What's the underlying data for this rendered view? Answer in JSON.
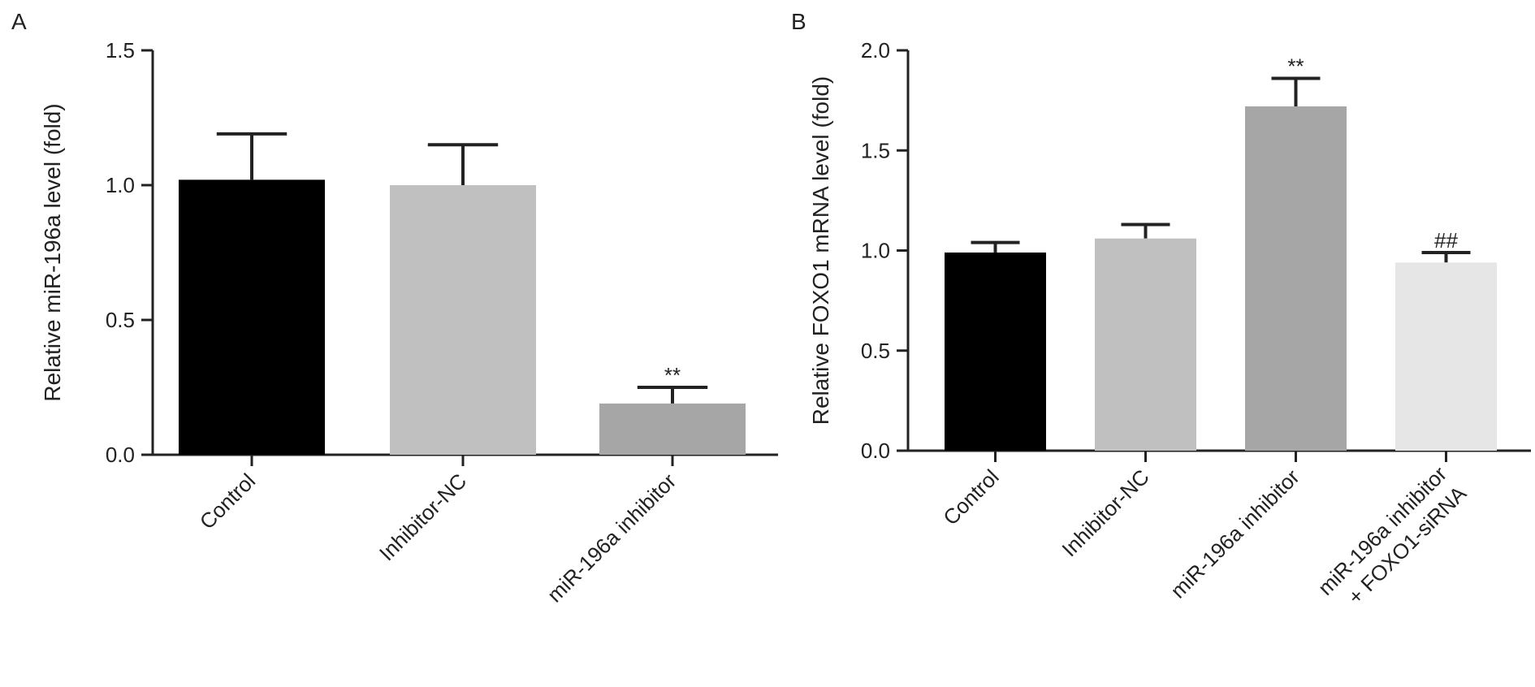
{
  "chart_data": [
    {
      "panel": "A",
      "type": "bar",
      "categories": [
        [
          "Control"
        ],
        [
          "Inhibitor-NC"
        ],
        [
          "miR-196a inhibitor"
        ]
      ],
      "values": [
        1.02,
        1.0,
        0.19
      ],
      "errors": [
        0.17,
        0.15,
        0.06
      ],
      "annotations": [
        "",
        "",
        "**"
      ],
      "colors": [
        "#000000",
        "#c0c0c0",
        "#a6a6a6"
      ],
      "ylabel": "Relative miR-196a level (fold)",
      "ylim": [
        0,
        1.5
      ],
      "yticks": [
        "0.0",
        "0.5",
        "1.0",
        "1.5"
      ],
      "ytick_values": [
        0,
        0.5,
        1.0,
        1.5
      ],
      "grid": false,
      "legend": "none"
    },
    {
      "panel": "B",
      "type": "bar",
      "categories": [
        [
          "Control"
        ],
        [
          "Inhibitor-NC"
        ],
        [
          "miR-196a inhibitor"
        ],
        [
          "miR-196a inhibitor",
          "+ FOXO1-siRNA"
        ]
      ],
      "values": [
        0.99,
        1.06,
        1.72,
        0.94
      ],
      "errors": [
        0.05,
        0.07,
        0.14,
        0.05
      ],
      "annotations": [
        "",
        "",
        "**",
        "##"
      ],
      "colors": [
        "#000000",
        "#c0c0c0",
        "#a6a6a6",
        "#e6e6e6"
      ],
      "ylabel": "Relative FOXO1 mRNA level (fold)",
      "ylim": [
        0,
        2.0
      ],
      "yticks": [
        "0.0",
        "0.5",
        "1.0",
        "1.5",
        "2.0"
      ],
      "ytick_values": [
        0,
        0.5,
        1.0,
        1.5,
        2.0
      ],
      "grid": false,
      "legend": "none"
    }
  ]
}
